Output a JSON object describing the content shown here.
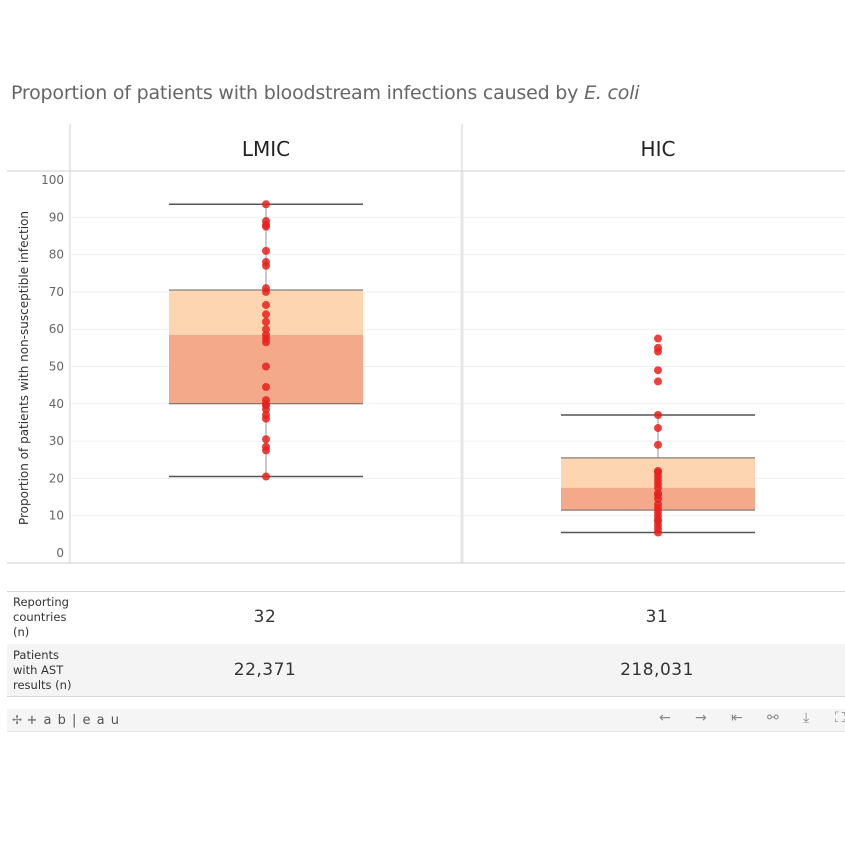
{
  "title_main": "Proportion of patients with bloodstream infections caused by",
  "title_italic": "E. coli",
  "chart_data": {
    "type": "box",
    "ylabel": "Proportion of patients with non-susceptible infection",
    "ylim": [
      0,
      100
    ],
    "yticks": [
      0,
      10,
      20,
      30,
      40,
      50,
      60,
      70,
      80,
      90,
      100
    ],
    "panels": [
      {
        "name": "LMIC",
        "whisker_low": 20.5,
        "q1": 40.0,
        "median": 58.5,
        "q3": 70.5,
        "whisker_high": 93.5,
        "points": [
          20.5,
          27.5,
          28.5,
          30.5,
          36.0,
          37.0,
          38.5,
          39.5,
          40.0,
          41.0,
          44.5,
          50.0,
          56.5,
          57.5,
          58.5,
          60.0,
          62.0,
          64.0,
          66.5,
          70.0,
          71.0,
          77.0,
          78.0,
          81.0,
          87.5,
          88.0,
          89.0,
          93.5
        ]
      },
      {
        "name": "HIC",
        "whisker_low": 5.5,
        "q1": 11.5,
        "median": 17.5,
        "q3": 25.5,
        "whisker_high": 37.0,
        "points": [
          5.5,
          6.5,
          7.5,
          8.5,
          9.0,
          10.0,
          11.0,
          12.0,
          13.0,
          14.5,
          15.5,
          16.0,
          17.5,
          18.5,
          19.5,
          20.5,
          21.5,
          22.0,
          29.0,
          33.5,
          37.0,
          46.0,
          49.0,
          54.0,
          55.0,
          57.5
        ]
      }
    ]
  },
  "table": {
    "rows": [
      {
        "label": "Reporting countries (n)",
        "values": [
          "32",
          "31"
        ]
      },
      {
        "label": "Patients with AST results (n)",
        "values": [
          "22,371",
          "218,031"
        ]
      }
    ]
  },
  "footer": {
    "logo_text": "+ a b | e a u",
    "logo_icon": "tableau-logo-icon",
    "buttons": [
      "undo-icon",
      "redo-icon",
      "revert-icon",
      "share-icon",
      "download-icon",
      "fullscreen-icon"
    ]
  },
  "colors": {
    "q3_box": "#fdd5b1",
    "q1_box": "#f3a98a",
    "point": "#e8211b",
    "whisker": "#555555"
  }
}
